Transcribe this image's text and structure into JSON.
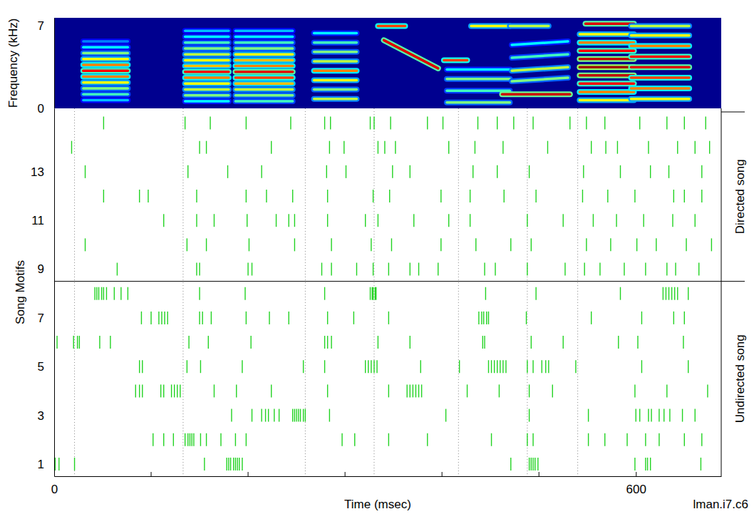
{
  "chart_data": [
    {
      "type": "spectrogram",
      "ylabel": "Frequency (kHz)",
      "xlim": [
        0,
        688
      ],
      "ylim": [
        0,
        7.7
      ],
      "yticks": [
        0,
        7
      ],
      "clim": [
        0,
        1
      ],
      "segments": [
        {
          "t": [
            30,
            76
          ],
          "bands": [
            0.7,
            1.2,
            1.7,
            2.2,
            2.7,
            3.2,
            3.7,
            4.2,
            4.7,
            5.2,
            5.7
          ],
          "power": [
            0.35,
            0.45,
            0.5,
            0.6,
            0.7,
            0.8,
            0.7,
            0.6,
            0.5,
            0.4,
            0.3
          ],
          "sweep": 0
        },
        {
          "t": [
            135,
            180
          ],
          "bands": [
            0.6,
            1.1,
            1.6,
            2.1,
            2.6,
            3.1,
            3.6,
            4.1,
            4.6,
            5.1,
            5.6,
            6.1,
            6.6
          ],
          "power": [
            0.4,
            0.5,
            0.55,
            0.6,
            0.7,
            0.8,
            0.65,
            0.6,
            0.55,
            0.5,
            0.45,
            0.4,
            0.35
          ],
          "sweep": 0
        },
        {
          "t": [
            187,
            246
          ],
          "bands": [
            0.6,
            1.1,
            1.6,
            2.1,
            2.6,
            3.1,
            3.6,
            4.1,
            4.6,
            5.1,
            5.6,
            6.1,
            6.6
          ],
          "power": [
            0.45,
            0.5,
            0.55,
            0.65,
            0.75,
            0.85,
            0.7,
            0.65,
            0.6,
            0.5,
            0.45,
            0.4,
            0.35
          ],
          "sweep": 0
        },
        {
          "t": [
            268,
            312
          ],
          "bands": [
            0.8,
            1.6,
            2.4,
            3.2,
            4.0,
            4.8,
            5.6,
            6.4
          ],
          "power": [
            0.55,
            0.5,
            0.6,
            0.7,
            0.55,
            0.5,
            0.45,
            0.4
          ],
          "sweep": 0
        },
        {
          "t": [
            334,
            362
          ],
          "bands": [
            7.0
          ],
          "power": [
            0.75
          ],
          "sweep": 0
        },
        {
          "t": [
            340,
            396
          ],
          "bands": [
            5.8
          ],
          "power": [
            0.85
          ],
          "sweep": -2.4
        },
        {
          "t": [
            402,
            426
          ],
          "bands": [
            4.1
          ],
          "power": [
            0.75
          ],
          "sweep": 0
        },
        {
          "t": [
            405,
            470
          ],
          "bands": [
            0.5,
            1.5,
            2.5,
            3.3
          ],
          "power": [
            0.5,
            0.45,
            0.5,
            0.4
          ],
          "sweep": 0
        },
        {
          "t": [
            430,
            470
          ],
          "bands": [
            7.0
          ],
          "power": [
            0.6
          ],
          "sweep": 0
        },
        {
          "t": [
            462,
            532
          ],
          "bands": [
            1.2
          ],
          "power": [
            0.88
          ],
          "sweep": 0
        },
        {
          "t": [
            472,
            530
          ],
          "bands": [
            2.3,
            3.2,
            4.3,
            5.4
          ],
          "power": [
            0.5,
            0.55,
            0.45,
            0.4
          ],
          "sweep": 0.3
        },
        {
          "t": [
            470,
            510
          ],
          "bands": [
            7.0
          ],
          "power": [
            0.55
          ],
          "sweep": 0
        },
        {
          "t": [
            542,
            598
          ],
          "bands": [
            0.7,
            1.4,
            2.1,
            2.8,
            3.5,
            4.2,
            4.9,
            5.6,
            6.3
          ],
          "power": [
            0.6,
            0.7,
            0.8,
            0.9,
            0.95,
            0.9,
            0.8,
            0.7,
            0.6
          ],
          "sweep": 0
        },
        {
          "t": [
            548,
            598
          ],
          "bands": [
            7.2
          ],
          "power": [
            0.85
          ],
          "sweep": 0
        },
        {
          "t": [
            595,
            655
          ],
          "bands": [
            0.8,
            1.7,
            2.6,
            3.5,
            4.4,
            5.3,
            6.2,
            7.0
          ],
          "power": [
            0.6,
            0.7,
            0.75,
            0.85,
            0.8,
            0.7,
            0.6,
            0.55
          ],
          "sweep": 0
        }
      ]
    },
    {
      "type": "raster",
      "xlabel": "Time (msec)",
      "ylabel": "Song Motifs",
      "annotation": "lman.i7.c6",
      "color": "#22d322",
      "xlim": [
        0,
        688
      ],
      "xticks": [
        0,
        600
      ],
      "xminor_ticks": [
        100,
        200,
        300,
        400,
        500
      ],
      "ylim": [
        0.5,
        15.6
      ],
      "yticks": [
        1,
        3,
        5,
        7,
        9,
        11,
        13
      ],
      "markers": [
        21,
        133,
        259,
        330,
        417,
        488,
        540
      ],
      "groups": [
        {
          "label": "Directed song",
          "motifs": [
            9,
            15
          ]
        },
        {
          "label": "Undirected song",
          "motifs": [
            1,
            8
          ]
        }
      ],
      "trials": [
        {
          "motif": 1,
          "spikes": [
            1,
            5,
            21,
            155,
            178,
            180,
            182,
            185,
            187,
            189,
            191,
            194,
            471,
            490,
            492,
            494,
            496,
            499,
            599,
            610,
            612,
            615,
            667
          ]
        },
        {
          "motif": 2,
          "spikes": [
            102,
            113,
            123,
            135,
            138,
            140,
            142,
            144,
            151,
            157,
            172,
            187,
            198,
            297,
            310,
            345,
            385,
            451,
            488,
            494,
            551,
            568,
            591,
            610,
            624,
            650,
            668
          ]
        },
        {
          "motif": 3,
          "spikes": [
            183,
            204,
            214,
            218,
            221,
            227,
            232,
            246,
            248,
            250,
            252,
            254,
            257,
            259,
            284,
            404,
            490,
            551,
            600,
            604,
            613,
            616,
            624,
            629,
            635,
            648,
            661
          ]
        },
        {
          "motif": 4,
          "spikes": [
            84,
            88,
            91,
            110,
            113,
            121,
            124,
            127,
            130,
            165,
            188,
            224,
            282,
            345,
            364,
            367,
            370,
            373,
            376,
            379,
            426,
            459,
            490,
            514,
            599,
            632,
            674
          ]
        },
        {
          "motif": 5,
          "spikes": [
            88,
            91,
            137,
            151,
            194,
            257,
            279,
            321,
            324,
            327,
            330,
            333,
            378,
            418,
            448,
            451,
            454,
            457,
            460,
            463,
            466,
            488,
            494,
            503,
            507,
            510,
            538,
            606,
            654
          ]
        },
        {
          "motif": 6,
          "spikes": [
            3,
            20,
            24,
            26,
            47,
            58,
            139,
            159,
            203,
            279,
            282,
            286,
            334,
            367,
            442,
            444,
            492,
            525,
            582,
            602,
            649
          ]
        },
        {
          "motif": 7,
          "spikes": [
            90,
            100,
            108,
            111,
            114,
            117,
            150,
            153,
            162,
            198,
            222,
            242,
            282,
            309,
            345,
            438,
            441,
            443,
            446,
            448,
            487,
            554,
            606,
            639,
            650
          ]
        },
        {
          "motif": 8,
          "spikes": [
            42,
            44,
            46,
            49,
            51,
            54,
            62,
            69,
            76,
            150,
            197,
            279,
            326,
            328,
            329,
            331,
            332,
            445,
            497,
            584,
            628,
            631,
            634,
            637,
            640,
            643,
            654
          ]
        },
        {
          "motif": 9,
          "spikes": [
            65,
            147,
            150,
            200,
            204,
            276,
            286,
            312,
            329,
            345,
            367,
            376,
            396,
            444,
            455,
            488,
            527,
            547,
            563,
            588,
            610,
            632,
            641,
            665
          ]
        },
        {
          "motif": 10,
          "spikes": [
            32,
            137,
            157,
            201,
            248,
            286,
            327,
            348,
            399,
            435,
            471,
            492,
            549,
            574,
            601,
            621,
            652,
            678
          ]
        },
        {
          "motif": 11,
          "spikes": [
            113,
            147,
            165,
            199,
            229,
            242,
            248,
            282,
            321,
            334,
            371,
            407,
            429,
            488,
            525,
            556,
            580,
            608,
            638,
            661
          ]
        },
        {
          "motif": 12,
          "spikes": [
            51,
            88,
            97,
            147,
            198,
            219,
            246,
            282,
            329,
            346,
            399,
            429,
            464,
            497,
            545,
            571,
            599,
            639,
            650,
            668
          ]
        },
        {
          "motif": 13,
          "spikes": [
            32,
            138,
            179,
            214,
            281,
            301,
            349,
            367,
            432,
            457,
            490,
            546,
            584,
            615,
            634,
            668
          ]
        },
        {
          "motif": 14,
          "spikes": [
            18,
            150,
            157,
            224,
            284,
            299,
            334,
            341,
            352,
            407,
            434,
            463,
            509,
            554,
            569,
            581,
            613,
            643,
            661,
            676
          ]
        },
        {
          "motif": 15,
          "spikes": [
            51,
            135,
            161,
            198,
            244,
            279,
            285,
            326,
            330,
            347,
            385,
            401,
            437,
            457,
            474,
            494,
            532,
            549,
            568,
            604,
            632,
            650,
            672
          ]
        }
      ]
    }
  ]
}
